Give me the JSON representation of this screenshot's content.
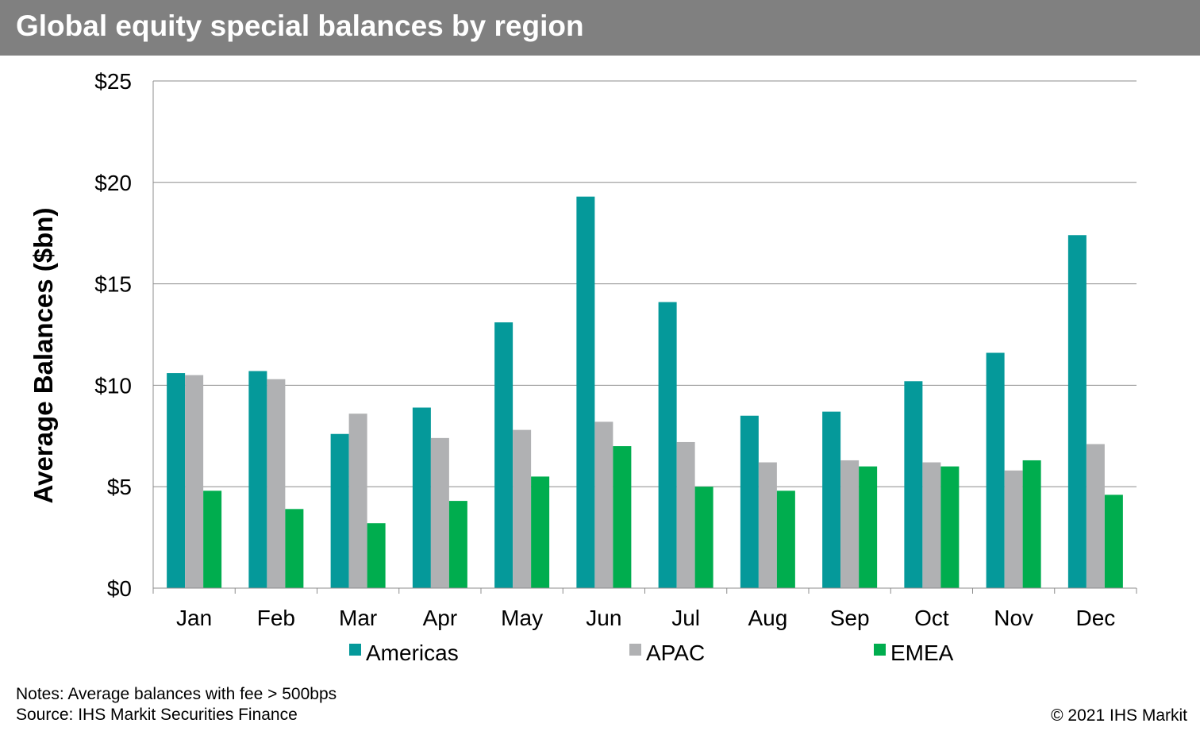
{
  "header": {
    "title": "Global equity special balances by region"
  },
  "chart_data": {
    "type": "bar",
    "title": "Global equity special balances by region",
    "xlabel": "",
    "ylabel": "Average Balances ($bn)",
    "ylim": [
      0,
      25
    ],
    "yticks": [
      0,
      5,
      10,
      15,
      20,
      25
    ],
    "ytick_labels": [
      "$0",
      "$5",
      "$10",
      "$15",
      "$20",
      "$25"
    ],
    "grid": true,
    "legend": "bottom",
    "categories": [
      "Jan",
      "Feb",
      "Mar",
      "Apr",
      "May",
      "Jun",
      "Jul",
      "Aug",
      "Sep",
      "Oct",
      "Nov",
      "Dec"
    ],
    "series": [
      {
        "name": "Americas",
        "color": "#05999A",
        "values": [
          10.6,
          10.7,
          7.6,
          8.9,
          13.1,
          19.3,
          14.1,
          8.5,
          8.7,
          10.2,
          11.6,
          17.4
        ]
      },
      {
        "name": "APAC",
        "color": "#B0B1B3",
        "values": [
          10.5,
          10.3,
          8.6,
          7.4,
          7.8,
          8.2,
          7.2,
          6.2,
          6.3,
          6.2,
          5.8,
          7.1
        ]
      },
      {
        "name": "EMEA",
        "color": "#00AD4E",
        "values": [
          4.8,
          3.9,
          3.2,
          4.3,
          5.5,
          7.0,
          5.0,
          4.8,
          6.0,
          6.0,
          6.3,
          4.6
        ]
      }
    ]
  },
  "footer": {
    "notes": "Notes: Average balances with fee > 500bps",
    "source": "Source: IHS Markit Securities Finance",
    "copyright": "© 2021 IHS Markit"
  }
}
